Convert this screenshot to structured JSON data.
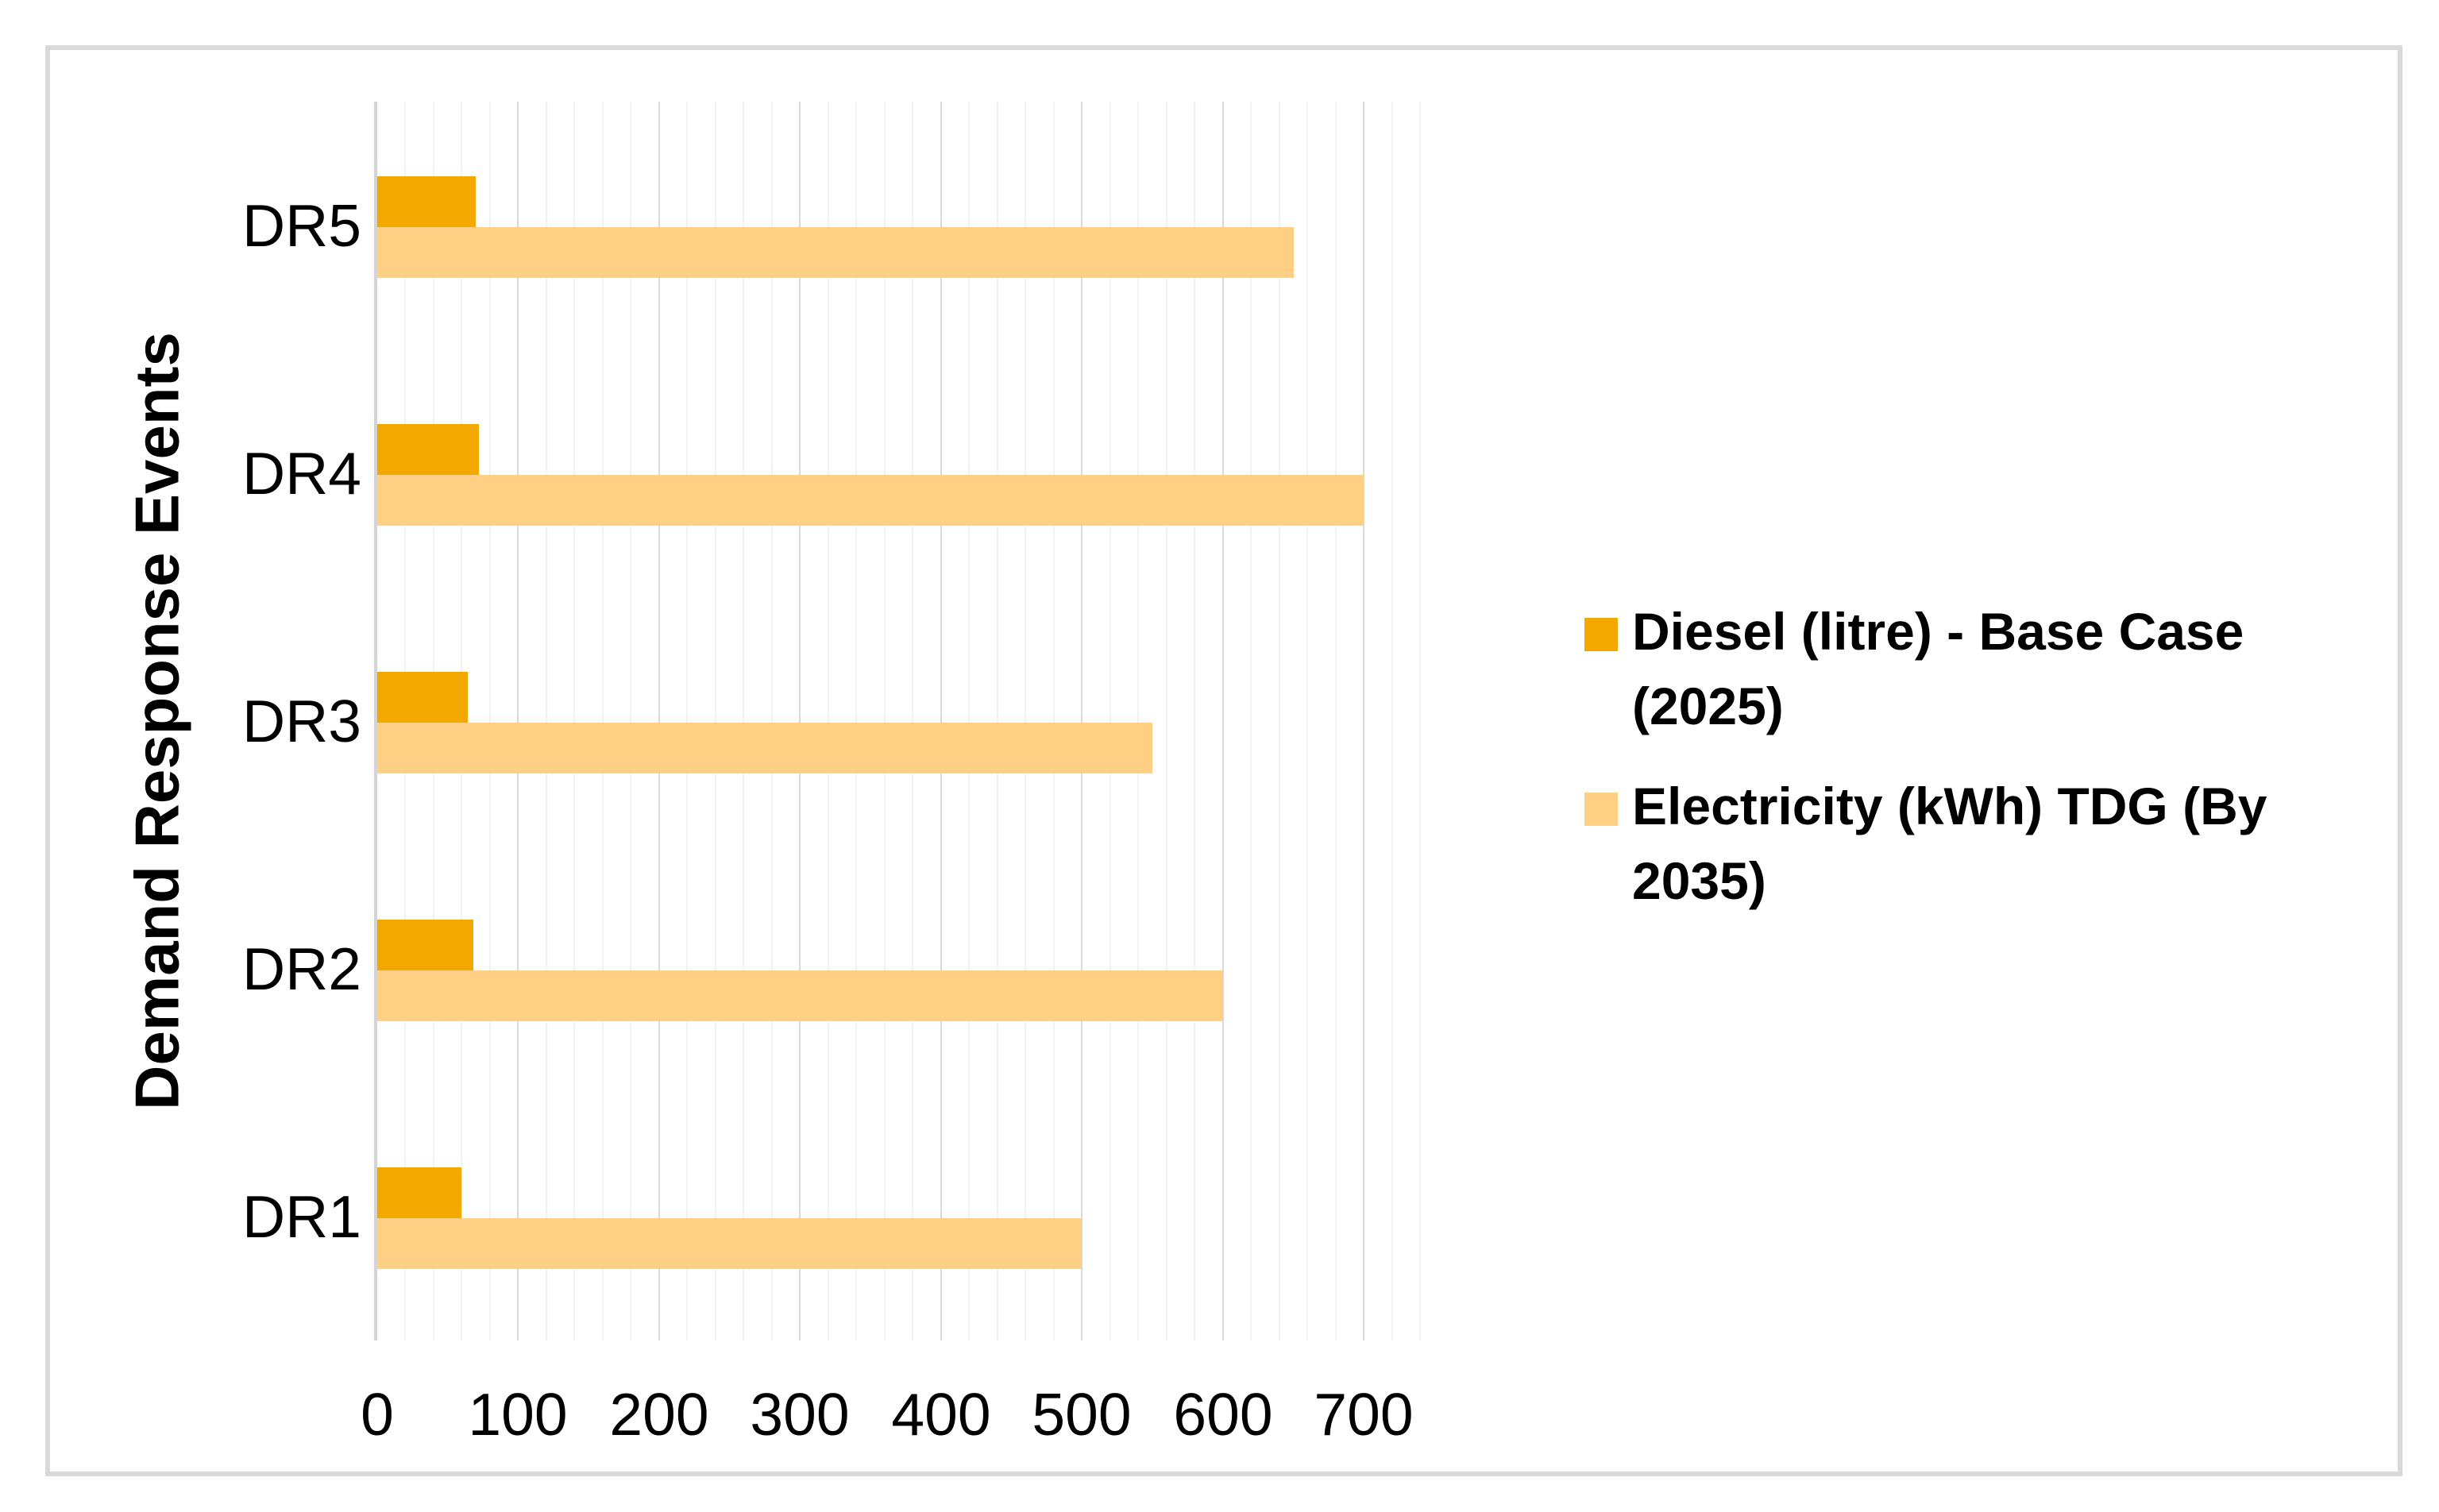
{
  "figure": {
    "background": "#FFFFFF",
    "border_color": "#D9D9D9"
  },
  "chart_data": {
    "type": "bar",
    "orientation": "horizontal",
    "title": "",
    "categories": [
      "DR1",
      "DR2",
      "DR3",
      "DR4",
      "DR5"
    ],
    "category_display_order_top_to_bottom": [
      "DR5",
      "DR4",
      "DR3",
      "DR2",
      "DR1"
    ],
    "series": [
      {
        "name": "Diesel (litre) - Base Case (2025)",
        "color": "#F3A800",
        "values": [
          60,
          68,
          64,
          72,
          70
        ]
      },
      {
        "name": "Electricity (kWh) TDG (By 2035)",
        "color": "#FFD084",
        "values": [
          500,
          600,
          550,
          700,
          650
        ]
      }
    ],
    "xlabel": "",
    "ylabel": "Demand Response Events",
    "xlim": [
      0,
      750
    ],
    "x_ticks": [
      0,
      100,
      200,
      300,
      400,
      500,
      600,
      700
    ],
    "gridlines": {
      "show": true,
      "minor_step": 20,
      "major_step": 100,
      "minor_color": "#F2F2F2",
      "major_color": "#D9D9D9",
      "axis_line_color": "#D3D3D3"
    },
    "legend_position": "right"
  }
}
